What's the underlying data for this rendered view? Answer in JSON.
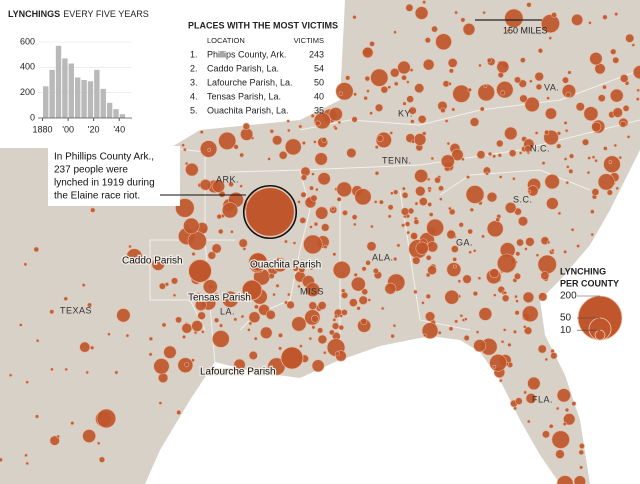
{
  "chart_data": {
    "type": "histogram",
    "title": "LYNCHINGS",
    "subtitle": "EVERY FIVE YEARS",
    "bins": [
      1880,
      1885,
      1890,
      1895,
      1900,
      1905,
      1910,
      1915,
      1920,
      1925,
      1930,
      1935,
      1940,
      1945
    ],
    "values": [
      250,
      380,
      570,
      470,
      430,
      320,
      300,
      290,
      380,
      230,
      120,
      70,
      30
    ],
    "color": "#b9b9b9",
    "xlim": [
      1878,
      1950
    ],
    "ylim": [
      0,
      600
    ],
    "xticks": [
      1880,
      {
        "value": 1900,
        "label": "'00"
      },
      {
        "value": 1920,
        "label": "'20"
      },
      {
        "value": 1940,
        "label": "'40"
      }
    ],
    "yticks": [
      0,
      200,
      400,
      600
    ]
  },
  "table": {
    "title": "PLACES WITH THE MOST VICTIMS",
    "columns": [
      "LOCATION",
      "VICTIMS"
    ],
    "rows": [
      {
        "rank": "1.",
        "location": "Phillips County, Ark.",
        "victims": 243
      },
      {
        "rank": "2.",
        "location": "Caddo Parish, La.",
        "victims": 54
      },
      {
        "rank": "3.",
        "location": "Lafourche Parish, La.",
        "victims": 50
      },
      {
        "rank": "4.",
        "location": "Tensas Parish, La.",
        "victims": 40
      },
      {
        "rank": "5.",
        "location": "Ouachita Parish, La.",
        "victims": 35
      }
    ]
  },
  "map": {
    "scale": "150 MILES",
    "dot_color": "#c0562b",
    "annotation": [
      "In Phillips County Ark.,",
      "237 people were",
      "lynched in 1919 during",
      "the Elaine race riot."
    ],
    "states": [
      "TEXAS",
      "ARK.",
      "LA.",
      "MISS",
      "ALA.",
      "GA.",
      "TENN.",
      "KY.",
      "VA.",
      "N.C.",
      "S.C.",
      "FLA."
    ],
    "counties": [
      "Caddo Parish",
      "Ouachita Parish",
      "Tensas Parish",
      "Lafourche Parish"
    ]
  },
  "legend": {
    "title": [
      "LYNCHING",
      "PER COUNTY"
    ],
    "sizes": [
      200,
      50,
      10
    ]
  }
}
